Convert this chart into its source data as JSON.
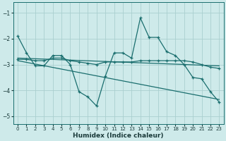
{
  "xlabel": "Humidex (Indice chaleur)",
  "ylabel": "",
  "xlim": [
    -0.5,
    23.5
  ],
  "ylim": [
    -5.3,
    -0.6
  ],
  "bg_color": "#ceeaea",
  "grid_color": "#aacfcf",
  "line_color": "#1a6e6e",
  "xticks": [
    0,
    1,
    2,
    3,
    4,
    5,
    6,
    7,
    8,
    9,
    10,
    11,
    12,
    13,
    14,
    15,
    16,
    17,
    18,
    19,
    20,
    21,
    22,
    23
  ],
  "yticks": [
    -5,
    -4,
    -3,
    -2,
    -1
  ],
  "lines": [
    {
      "x": [
        0,
        1,
        2,
        3,
        4,
        5,
        6,
        7,
        8,
        9,
        10,
        11,
        12,
        13,
        14,
        15,
        16,
        17,
        18,
        19,
        20,
        21,
        22,
        23
      ],
      "y": [
        -1.9,
        -2.55,
        -3.05,
        -3.05,
        -2.65,
        -2.65,
        -3.0,
        -4.05,
        -4.25,
        -4.6,
        -3.45,
        -2.55,
        -2.55,
        -2.75,
        -1.2,
        -1.95,
        -1.95,
        -2.5,
        -2.65,
        -3.0,
        -3.5,
        -3.55,
        -4.05,
        -4.45
      ],
      "style": "solid",
      "marker": true
    },
    {
      "x": [
        0,
        1,
        2,
        3,
        4,
        5,
        6,
        7,
        8,
        9,
        10,
        11,
        12,
        13,
        14,
        15,
        16,
        17,
        18,
        19,
        20,
        21,
        22,
        23
      ],
      "y": [
        -2.8,
        -2.8,
        -2.85,
        -2.85,
        -2.75,
        -2.75,
        -2.85,
        -2.9,
        -2.95,
        -3.0,
        -2.9,
        -2.9,
        -2.9,
        -2.9,
        -2.85,
        -2.85,
        -2.85,
        -2.85,
        -2.85,
        -2.85,
        -2.9,
        -3.0,
        -3.1,
        -3.15
      ],
      "style": "solid",
      "marker": true
    },
    {
      "x": [
        0,
        23
      ],
      "y": [
        -2.75,
        -3.05
      ],
      "style": "solid",
      "marker": false
    },
    {
      "x": [
        0,
        23
      ],
      "y": [
        -2.85,
        -4.35
      ],
      "style": "solid",
      "marker": false
    }
  ]
}
